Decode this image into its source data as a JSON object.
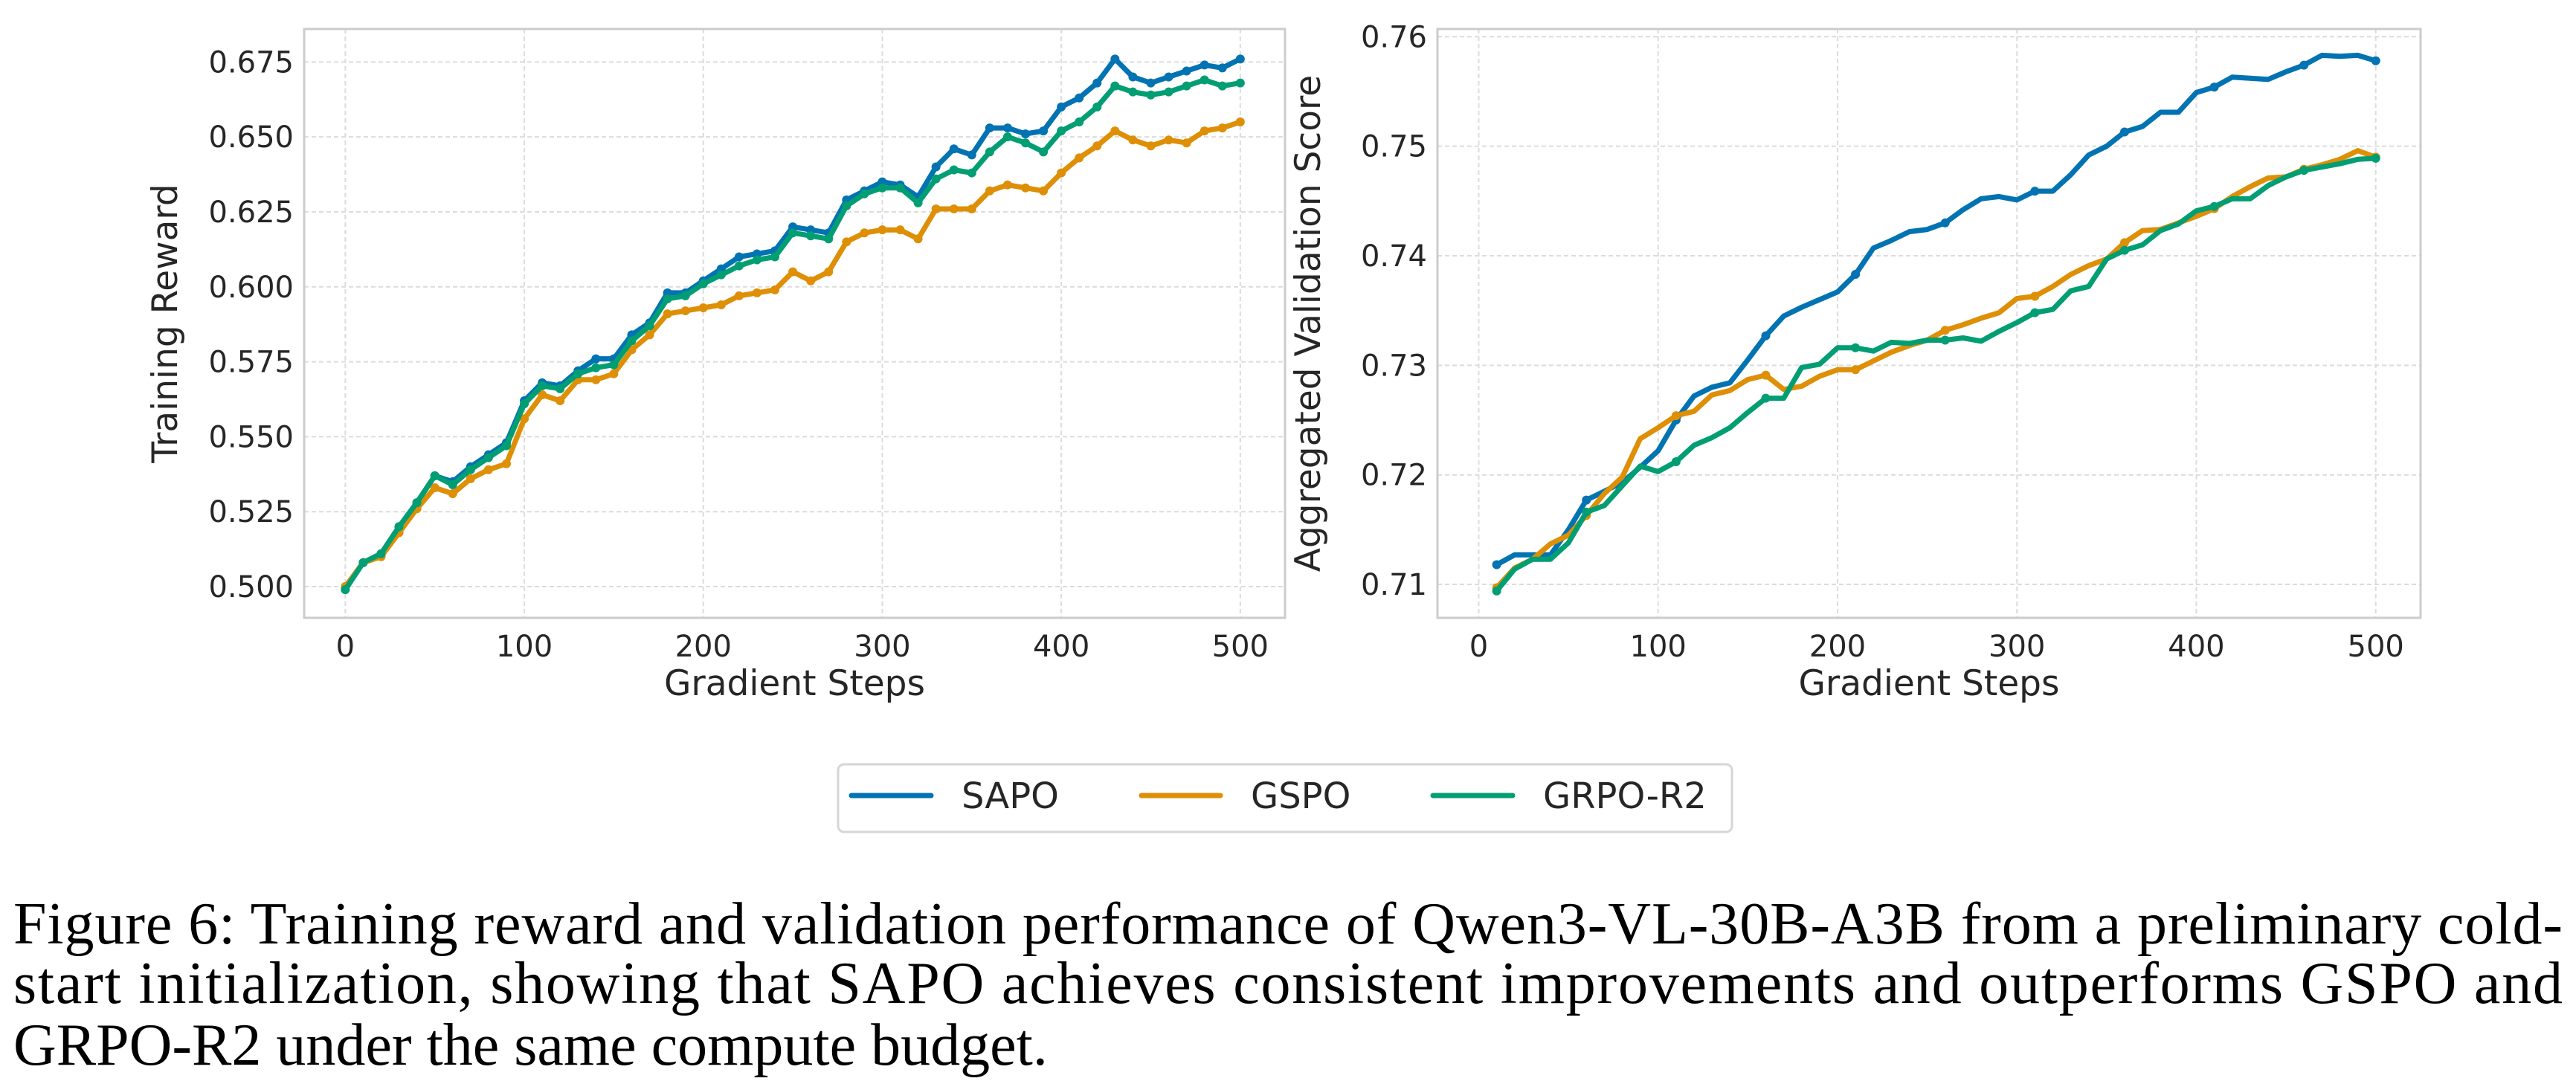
{
  "chart_data": [
    {
      "type": "line",
      "xlabel": "Gradient Steps",
      "ylabel": "Training Reward",
      "xlim": [
        -23,
        525
      ],
      "ylim": [
        0.4896,
        0.686
      ],
      "xticks": [
        "0",
        "100",
        "200",
        "300",
        "400",
        "500"
      ],
      "yticks": [
        "0.500",
        "0.525",
        "0.550",
        "0.575",
        "0.600",
        "0.625",
        "0.650",
        "0.675"
      ],
      "grid": true,
      "x": [
        0,
        10,
        20,
        30,
        40,
        50,
        60,
        70,
        80,
        90,
        100,
        110,
        120,
        130,
        140,
        150,
        160,
        170,
        180,
        190,
        200,
        210,
        220,
        230,
        240,
        250,
        260,
        270,
        280,
        290,
        300,
        310,
        320,
        330,
        340,
        350,
        360,
        370,
        380,
        390,
        400,
        410,
        420,
        430,
        440,
        450,
        460,
        470,
        480,
        490,
        500
      ],
      "series": [
        {
          "name": "SAPO",
          "color": "#0173b2",
          "values": [
            0.5,
            0.508,
            0.511,
            0.52,
            0.528,
            0.537,
            0.535,
            0.54,
            0.544,
            0.548,
            0.562,
            0.568,
            0.567,
            0.572,
            0.576,
            0.576,
            0.584,
            0.588,
            0.598,
            0.598,
            0.602,
            0.606,
            0.61,
            0.611,
            0.612,
            0.62,
            0.619,
            0.618,
            0.629,
            0.632,
            0.635,
            0.634,
            0.63,
            0.64,
            0.646,
            0.644,
            0.653,
            0.653,
            0.651,
            0.652,
            0.66,
            0.663,
            0.668,
            0.676,
            0.67,
            0.668,
            0.67,
            0.672,
            0.674,
            0.673,
            0.676
          ]
        },
        {
          "name": "GSPO",
          "color": "#de8f05",
          "values": [
            0.5,
            0.508,
            0.51,
            0.518,
            0.526,
            0.533,
            0.531,
            0.536,
            0.539,
            0.541,
            0.556,
            0.564,
            0.562,
            0.569,
            0.569,
            0.571,
            0.579,
            0.584,
            0.591,
            0.592,
            0.593,
            0.594,
            0.597,
            0.598,
            0.599,
            0.605,
            0.602,
            0.605,
            0.615,
            0.618,
            0.619,
            0.619,
            0.616,
            0.626,
            0.626,
            0.626,
            0.632,
            0.634,
            0.633,
            0.632,
            0.638,
            0.643,
            0.647,
            0.652,
            0.649,
            0.647,
            0.649,
            0.648,
            0.652,
            0.653,
            0.655
          ]
        },
        {
          "name": "GRPO-R2",
          "color": "#029e73",
          "values": [
            0.499,
            0.508,
            0.511,
            0.52,
            0.528,
            0.537,
            0.534,
            0.539,
            0.543,
            0.547,
            0.561,
            0.567,
            0.566,
            0.571,
            0.573,
            0.574,
            0.582,
            0.587,
            0.596,
            0.597,
            0.601,
            0.604,
            0.607,
            0.609,
            0.61,
            0.618,
            0.617,
            0.616,
            0.627,
            0.631,
            0.633,
            0.633,
            0.628,
            0.636,
            0.639,
            0.638,
            0.645,
            0.65,
            0.648,
            0.645,
            0.652,
            0.655,
            0.66,
            0.667,
            0.665,
            0.664,
            0.665,
            0.667,
            0.669,
            0.667,
            0.668
          ]
        }
      ]
    },
    {
      "type": "line",
      "xlabel": "Gradient Steps",
      "ylabel": "Aggregated Validation Score",
      "xlim": [
        -23,
        525
      ],
      "ylim": [
        0.70695,
        0.7607
      ],
      "xticks": [
        "0",
        "100",
        "200",
        "300",
        "400",
        "500"
      ],
      "yticks": [
        "0.71",
        "0.72",
        "0.73",
        "0.74",
        "0.75",
        "0.76"
      ],
      "grid": true,
      "x": [
        10,
        20,
        30,
        40,
        50,
        60,
        70,
        80,
        90,
        100,
        110,
        120,
        130,
        140,
        150,
        160,
        170,
        180,
        190,
        200,
        210,
        220,
        230,
        240,
        250,
        260,
        270,
        280,
        290,
        300,
        310,
        320,
        330,
        340,
        350,
        360,
        370,
        380,
        390,
        400,
        410,
        420,
        430,
        440,
        450,
        460,
        470,
        480,
        490,
        500
      ],
      "series": [
        {
          "name": "SAPO",
          "color": "#0173b2",
          "values": [
            0.7118,
            0.7127,
            0.7127,
            0.7127,
            0.715,
            0.7177,
            0.7185,
            0.7193,
            0.7207,
            0.7222,
            0.725,
            0.7272,
            0.728,
            0.7284,
            0.7305,
            0.7327,
            0.7345,
            0.7353,
            0.736,
            0.7367,
            0.7383,
            0.7407,
            0.7414,
            0.7422,
            0.7424,
            0.743,
            0.7442,
            0.7452,
            0.7454,
            0.7451,
            0.7459,
            0.7459,
            0.7474,
            0.7492,
            0.75,
            0.7513,
            0.7518,
            0.7531,
            0.7531,
            0.7549,
            0.7554,
            0.7563,
            0.7562,
            0.7561,
            0.7568,
            0.7574,
            0.7583,
            0.7582,
            0.7583,
            0.7578
          ]
        },
        {
          "name": "GSPO",
          "color": "#de8f05",
          "values": [
            0.7097,
            0.7115,
            0.7123,
            0.7137,
            0.7145,
            0.7163,
            0.7183,
            0.7198,
            0.7233,
            0.7243,
            0.7254,
            0.7258,
            0.7273,
            0.7277,
            0.7287,
            0.7291,
            0.7278,
            0.7281,
            0.729,
            0.7296,
            0.7296,
            0.7304,
            0.7312,
            0.7318,
            0.7323,
            0.7332,
            0.7337,
            0.7343,
            0.7348,
            0.7361,
            0.7363,
            0.7372,
            0.7383,
            0.7391,
            0.7397,
            0.7412,
            0.7423,
            0.7424,
            0.743,
            0.7436,
            0.7443,
            0.7454,
            0.7463,
            0.7471,
            0.7472,
            0.7479,
            0.7483,
            0.7488,
            0.7496,
            0.749
          ]
        },
        {
          "name": "GRPO-R2",
          "color": "#029e73",
          "values": [
            0.7094,
            0.7114,
            0.7123,
            0.7123,
            0.7138,
            0.7166,
            0.7172,
            0.719,
            0.7208,
            0.7203,
            0.7212,
            0.7227,
            0.7234,
            0.7243,
            0.7257,
            0.727,
            0.727,
            0.7298,
            0.7301,
            0.7316,
            0.7316,
            0.7313,
            0.7321,
            0.732,
            0.7323,
            0.7323,
            0.7325,
            0.7322,
            0.7331,
            0.7339,
            0.7348,
            0.7351,
            0.7368,
            0.7372,
            0.7397,
            0.7405,
            0.741,
            0.7423,
            0.7429,
            0.7441,
            0.7445,
            0.7452,
            0.7452,
            0.7464,
            0.7472,
            0.7478,
            0.7481,
            0.7484,
            0.7488,
            0.7489
          ]
        }
      ]
    }
  ],
  "legend": {
    "placement": "bottom-center",
    "items": [
      "SAPO",
      "GSPO",
      "GRPO-R2"
    ]
  },
  "caption": {
    "lines": [
      "Figure 6: Training reward and validation performance of Qwen3-VL-30B-A3B from a preliminary cold-",
      "start initialization, showing that SAPO achieves consistent improvements and outperforms GSPO and",
      "GRPO-R2 under the same compute budget."
    ]
  }
}
